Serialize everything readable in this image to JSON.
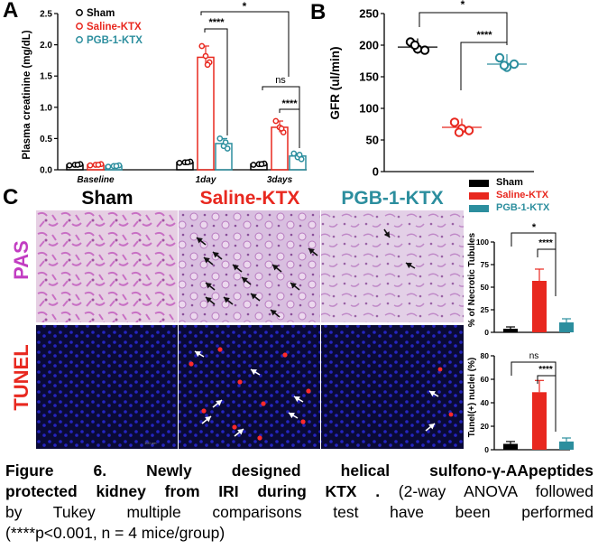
{
  "panelA": {
    "letter": "A",
    "ylabel": "Plasma creatinine (mg/dL)",
    "legend": [
      "Sham",
      "Saline-KTX",
      "PGB-1-KTX"
    ],
    "sig": {
      "day1_top": "*",
      "day1_inner": "****",
      "day3_top": "ns",
      "day3_inner": "****"
    }
  },
  "panelB": {
    "letter": "B",
    "ylabel": "GFR (ul/min)",
    "sig": {
      "top": "*",
      "inner": "****"
    }
  },
  "panelC": {
    "letter": "C",
    "col_headers": [
      "Sham",
      "Saline-KTX",
      "PGB-1-KTX"
    ],
    "row_labels": [
      "PAS",
      "TUNEL"
    ],
    "legend": [
      "Sham",
      "Saline-KTX",
      "PGB-1-KTX"
    ],
    "scale_text": "100 μm"
  },
  "panelC_top_chart": {
    "ylabel": "% of Necrotic Tubules",
    "sig_top": "*",
    "sig_inner": "****"
  },
  "panelC_bottom_chart": {
    "ylabel": "Tunel(+) nuclei (%)",
    "sig_top": "ns",
    "sig_inner": "****"
  },
  "colors": {
    "sham": "#000000",
    "saline": "#e8281f",
    "pgb": "#2c8e9e",
    "pas_bg": "#e4c9e1",
    "pas_stain": "#c66cc0",
    "tunel_bg": "#0a0a34",
    "tunel_dot": "#2323b8"
  },
  "caption": {
    "bold1": "Figure 6. Newly designed helical sulfono-γ-AApeptides",
    "bold2": "protected kidney from IRI during KTX .",
    "rest2": " (2-way ANOVA followed",
    "line3": "by Tukey multiple comparisons test have been performed",
    "line4": "(****p<0.001, n = 4 mice/group)"
  },
  "chart_data": [
    {
      "type": "bar",
      "categories": [
        "Baseline",
        "1day",
        "3days"
      ],
      "ylabel": "Plasma creatinine (mg/dL)",
      "ylim": [
        0,
        2.5
      ],
      "yticks": [
        "0.0",
        "0.5",
        "1.0",
        "1.5",
        "2.0",
        "2.5"
      ],
      "series": [
        {
          "name": "Sham",
          "values": [
            0.08,
            0.12,
            0.09
          ],
          "points": [
            [
              0.07,
              0.08,
              0.09,
              0.08
            ],
            [
              0.11,
              0.12,
              0.13,
              0.12
            ],
            [
              0.08,
              0.09,
              0.1,
              0.09
            ]
          ]
        },
        {
          "name": "Saline-KTX",
          "values": [
            0.08,
            1.8,
            0.68
          ],
          "points": [
            [
              0.07,
              0.08,
              0.09,
              0.08
            ],
            [
              1.98,
              1.82,
              1.72,
              1.68
            ],
            [
              0.78,
              0.68,
              0.6,
              0.66
            ]
          ]
        },
        {
          "name": "PGB-1-KTX",
          "values": [
            0.06,
            0.42,
            0.22
          ],
          "points": [
            [
              0.05,
              0.06,
              0.07,
              0.06
            ],
            [
              0.5,
              0.38,
              0.34,
              0.44
            ],
            [
              0.26,
              0.2,
              0.17,
              0.24
            ]
          ]
        }
      ]
    },
    {
      "type": "scatter",
      "categories": [
        "Sham",
        "Saline-KTX",
        "PGB-1-KTX"
      ],
      "ylabel": "GFR (ul/min)",
      "ylim": [
        0,
        250
      ],
      "yticks": [
        "0",
        "50",
        "100",
        "150",
        "200",
        "250"
      ],
      "series": [
        {
          "name": "Sham",
          "mean": 197,
          "points": [
            205,
            192,
            194,
            200
          ]
        },
        {
          "name": "Saline-KTX",
          "mean": 70,
          "points": [
            78,
            65,
            68,
            62
          ]
        },
        {
          "name": "PGB-1-KTX",
          "mean": 170,
          "points": [
            180,
            170,
            165,
            168
          ]
        }
      ]
    },
    {
      "type": "bar",
      "categories": [
        "Sham",
        "Saline-KTX",
        "PGB-1-KTX"
      ],
      "ylabel": "% of Necrotic Tubules",
      "ylim": [
        0,
        100
      ],
      "yticks": [
        "0",
        "25",
        "50",
        "75",
        "100"
      ],
      "values": [
        4,
        57,
        11
      ],
      "errors": [
        2,
        13,
        4
      ]
    },
    {
      "type": "bar",
      "categories": [
        "Sham",
        "Saline-KTX",
        "PGB-1-KTX"
      ],
      "ylabel": "Tunel(+) nuclei (%)",
      "ylim": [
        0,
        80
      ],
      "yticks": [
        "0",
        "20",
        "40",
        "60",
        "80"
      ],
      "values": [
        5,
        49,
        7
      ],
      "errors": [
        2,
        10,
        3
      ]
    }
  ]
}
